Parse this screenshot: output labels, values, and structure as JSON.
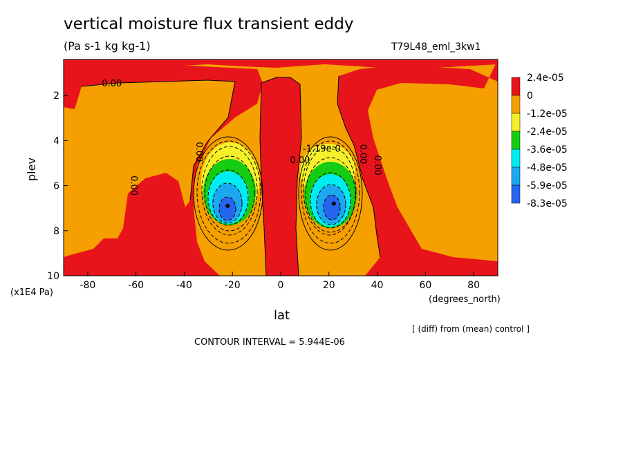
{
  "header": {
    "title": "vertical moisture flux transient eddy",
    "units": "(Pa s-1 kg kg-1)",
    "run": "T79L48_eml_3kw1"
  },
  "footer": {
    "diff_note": "[ (diff) from (mean) control ]",
    "contour_interval": "CONTOUR INTERVAL = 5.944E-06"
  },
  "chart_data": {
    "type": "heatmap",
    "xlabel": "lat",
    "ylabel": "plev",
    "x_unit": "(degrees_north)",
    "y_unit": "(x1E4 Pa)",
    "xlim": [
      -90,
      90
    ],
    "ylim": [
      10,
      0.4
    ],
    "x_ticks": [
      -80,
      -60,
      -40,
      -20,
      0,
      20,
      40,
      60,
      80
    ],
    "y_ticks": [
      2,
      4,
      6,
      8,
      10
    ],
    "legend": {
      "labels": [
        "2.4e-05",
        "0",
        "-1.2e-05",
        "-2.4e-05",
        "-3.6e-05",
        "-4.8e-05",
        "-5.9e-05",
        "-8.3e-05"
      ],
      "colors": [
        "#e8141c",
        "#f5a000",
        "#f6f02a",
        "#16cc12",
        "#00ecf0",
        "#1ca8f0",
        "#2566f0"
      ]
    },
    "contour_labels": [
      {
        "text": "0.00",
        "x": -70,
        "y": 1.6
      },
      {
        "text": "0.00",
        "x": -35,
        "y": 4.5
      },
      {
        "text": "0.00",
        "x": -62,
        "y": 6.0
      },
      {
        "text": "-1.19e-0",
        "x": 17,
        "y": 4.5
      },
      {
        "text": "0.00",
        "x": 8,
        "y": 5.0
      },
      {
        "text": "0.00",
        "x": 33,
        "y": 4.6
      },
      {
        "text": "0.00",
        "x": 39,
        "y": 5.1
      }
    ],
    "minima": [
      {
        "x": -22,
        "y": 6.9
      },
      {
        "x": 22,
        "y": 6.8
      }
    ],
    "grid": false,
    "legend_position": "right"
  }
}
